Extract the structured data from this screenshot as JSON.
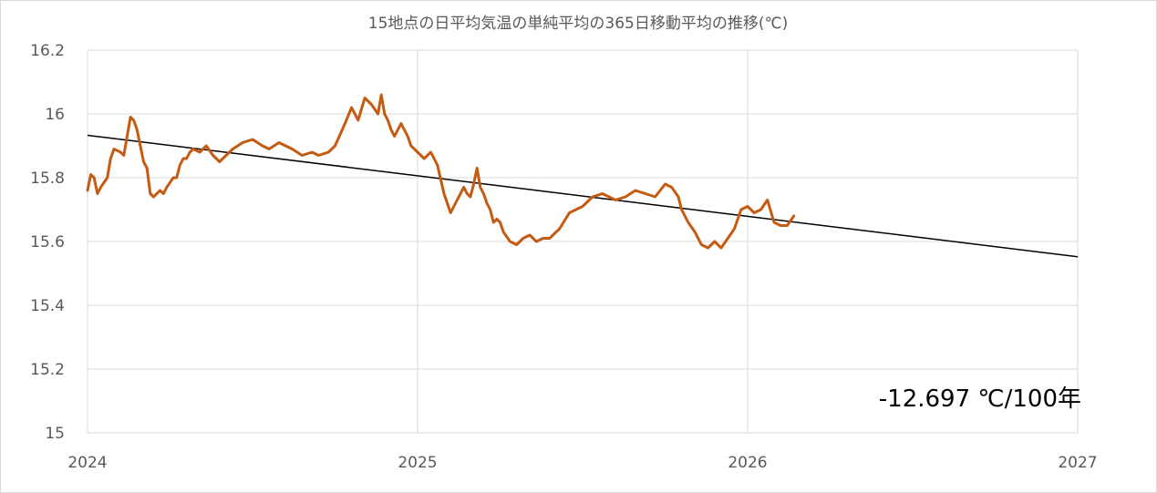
{
  "chart_data": {
    "type": "line",
    "title": "15地点の日平均気温の単純平均の365日移動平均の推移(℃)",
    "annotation": "-12.697 ℃/100年",
    "xlabel": "",
    "ylabel": "",
    "xlim": [
      2024,
      2027
    ],
    "ylim": [
      15,
      16.2
    ],
    "x_ticks": [
      "2024",
      "2025",
      "2026",
      "2027"
    ],
    "y_ticks": [
      "15",
      "15.2",
      "15.4",
      "15.6",
      "15.8",
      "16",
      "16.2"
    ],
    "grid": true,
    "colors": {
      "series": "#c55a11",
      "trend": "#000000",
      "grid": "#d9d9d9"
    },
    "series": [
      {
        "x": [
          2024.0,
          2024.01,
          2024.02,
          2024.03,
          2024.04,
          2024.06,
          2024.07,
          2024.08,
          2024.1,
          2024.11,
          2024.12,
          2024.13,
          2024.14,
          2024.15,
          2024.16,
          2024.17,
          2024.18,
          2024.19,
          2024.2,
          2024.22,
          2024.23,
          2024.24,
          2024.26,
          2024.27,
          2024.28,
          2024.29,
          2024.3,
          2024.31,
          2024.32,
          2024.34,
          2024.36,
          2024.38,
          2024.4,
          2024.42,
          2024.44,
          2024.47,
          2024.5,
          2024.53,
          2024.55,
          2024.58,
          2024.6,
          2024.62,
          2024.65,
          2024.68,
          2024.7,
          2024.73,
          2024.75,
          2024.78,
          2024.8,
          2024.82,
          2024.84,
          2024.86,
          2024.88,
          2024.89,
          2024.9,
          2024.91,
          2024.92,
          2024.93,
          2024.94,
          2024.95,
          2024.96,
          2024.97,
          2024.98,
          2025.0,
          2025.02,
          2025.04,
          2025.06,
          2025.08,
          2025.1,
          2025.12,
          2025.14,
          2025.15,
          2025.16,
          2025.17,
          2025.18,
          2025.19,
          2025.2,
          2025.21,
          2025.22,
          2025.23,
          2025.24,
          2025.25,
          2025.26,
          2025.28,
          2025.3,
          2025.32,
          2025.34,
          2025.36,
          2025.38,
          2025.4,
          2025.43,
          2025.46,
          2025.5,
          2025.53,
          2025.56,
          2025.6,
          2025.63,
          2025.66,
          2025.69,
          2025.72,
          2025.75,
          2025.77,
          2025.79,
          2025.8,
          2025.82,
          2025.84,
          2025.86,
          2025.88,
          2025.9,
          2025.92,
          2025.94,
          2025.96,
          2025.98,
          2026.0,
          2026.02,
          2026.04,
          2026.06,
          2026.08,
          2026.1,
          2026.12,
          2026.14
        ],
        "y": [
          15.76,
          15.81,
          15.8,
          15.75,
          15.77,
          15.8,
          15.86,
          15.89,
          15.88,
          15.87,
          15.93,
          15.99,
          15.98,
          15.95,
          15.9,
          15.85,
          15.83,
          15.75,
          15.74,
          15.76,
          15.75,
          15.77,
          15.8,
          15.8,
          15.84,
          15.86,
          15.86,
          15.88,
          15.89,
          15.88,
          15.9,
          15.87,
          15.85,
          15.87,
          15.89,
          15.91,
          15.92,
          15.9,
          15.89,
          15.91,
          15.9,
          15.89,
          15.87,
          15.88,
          15.87,
          15.88,
          15.9,
          15.97,
          16.02,
          15.98,
          16.05,
          16.03,
          16.0,
          16.06,
          16.0,
          15.98,
          15.95,
          15.93,
          15.95,
          15.97,
          15.95,
          15.93,
          15.9,
          15.88,
          15.86,
          15.88,
          15.84,
          15.75,
          15.69,
          15.73,
          15.77,
          15.75,
          15.74,
          15.78,
          15.83,
          15.77,
          15.75,
          15.72,
          15.7,
          15.66,
          15.67,
          15.66,
          15.63,
          15.6,
          15.59,
          15.61,
          15.62,
          15.6,
          15.61,
          15.61,
          15.64,
          15.69,
          15.71,
          15.74,
          15.75,
          15.73,
          15.74,
          15.76,
          15.75,
          15.74,
          15.78,
          15.77,
          15.74,
          15.7,
          15.66,
          15.63,
          15.59,
          15.58,
          15.6,
          15.58,
          15.61,
          15.64,
          15.7,
          15.71,
          15.69,
          15.7,
          15.73,
          15.66,
          15.65,
          15.65,
          15.68
        ]
      }
    ],
    "trend": {
      "x": [
        2024.0,
        2027.0
      ],
      "y": [
        15.933,
        15.552
      ]
    }
  }
}
